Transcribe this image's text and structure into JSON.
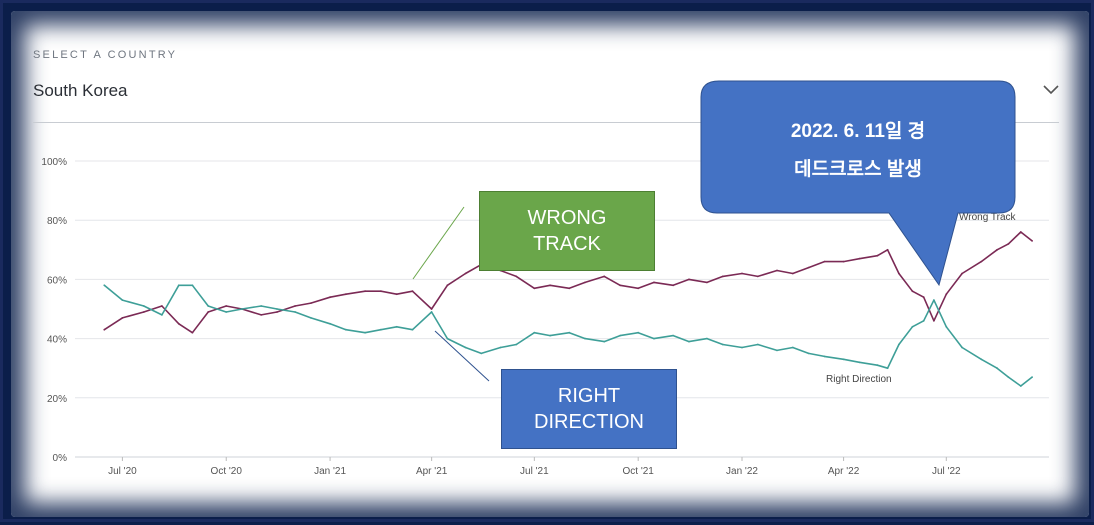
{
  "selector": {
    "label": "SELECT A COUNTRY",
    "value": "South Korea",
    "icon": "chevron-down-icon"
  },
  "annotations": {
    "wrong_box": [
      "WRONG",
      "TRACK"
    ],
    "right_box": [
      "RIGHT",
      "DIRECTION"
    ],
    "callout": [
      "2022. 6. 11일 경",
      "데드크로스 발생"
    ]
  },
  "colors": {
    "wrong_track": "#7b2a55",
    "right_direction": "#3e9f98",
    "wrong_box": "#6aa64a",
    "right_box": "#4472c4",
    "callout": "#4472c4",
    "frame": "#0b1e4a"
  },
  "chart_data": {
    "type": "line",
    "x_type": "date",
    "xlim": [
      "2020-05-20",
      "2022-09-30"
    ],
    "ylim": [
      0,
      100
    ],
    "y_ticks": [
      0,
      20,
      40,
      60,
      80,
      100
    ],
    "y_tick_labels": [
      "0%",
      "20%",
      "40%",
      "60%",
      "80%",
      "100%"
    ],
    "x_ticks": [
      "2020-07-01",
      "2020-10-01",
      "2021-01-01",
      "2021-04-01",
      "2021-07-01",
      "2021-10-01",
      "2022-01-01",
      "2022-04-01",
      "2022-07-01"
    ],
    "x_tick_labels": [
      "Jul '20",
      "Oct '20",
      "Jan '21",
      "Apr '21",
      "Jul '21",
      "Oct '21",
      "Jan '22",
      "Apr '22",
      "Jul '22"
    ],
    "grid": "horizontal",
    "series": [
      {
        "name": "Wrong Track",
        "x": [
          "2020-06-15",
          "2020-07-01",
          "2020-07-20",
          "2020-08-05",
          "2020-08-20",
          "2020-09-01",
          "2020-09-15",
          "2020-10-01",
          "2020-10-15",
          "2020-11-01",
          "2020-11-15",
          "2020-12-01",
          "2020-12-15",
          "2021-01-01",
          "2021-01-15",
          "2021-02-01",
          "2021-02-15",
          "2021-03-01",
          "2021-03-15",
          "2021-04-01",
          "2021-04-15",
          "2021-05-01",
          "2021-05-15",
          "2021-06-01",
          "2021-06-15",
          "2021-07-01",
          "2021-07-15",
          "2021-08-01",
          "2021-08-15",
          "2021-09-01",
          "2021-09-15",
          "2021-10-01",
          "2021-10-15",
          "2021-11-01",
          "2021-11-15",
          "2021-12-01",
          "2021-12-15",
          "2022-01-01",
          "2022-01-15",
          "2022-02-01",
          "2022-02-15",
          "2022-03-01",
          "2022-03-15",
          "2022-04-01",
          "2022-04-15",
          "2022-05-01",
          "2022-05-10",
          "2022-05-20",
          "2022-06-01",
          "2022-06-11",
          "2022-06-20",
          "2022-07-01",
          "2022-07-15",
          "2022-08-01",
          "2022-08-15",
          "2022-08-25",
          "2022-09-05",
          "2022-09-15"
        ],
        "values": [
          43,
          47,
          49,
          51,
          45,
          42,
          49,
          51,
          50,
          48,
          49,
          51,
          52,
          54,
          55,
          56,
          56,
          55,
          56,
          50,
          58,
          62,
          65,
          63,
          61,
          57,
          58,
          57,
          59,
          61,
          58,
          57,
          59,
          58,
          60,
          59,
          61,
          62,
          61,
          63,
          62,
          64,
          66,
          66,
          67,
          68,
          70,
          62,
          56,
          54,
          46,
          55,
          62,
          66,
          70,
          72,
          76,
          73
        ]
      },
      {
        "name": "Right Direction",
        "x": [
          "2020-06-15",
          "2020-07-01",
          "2020-07-20",
          "2020-08-05",
          "2020-08-20",
          "2020-09-01",
          "2020-09-15",
          "2020-10-01",
          "2020-10-15",
          "2020-11-01",
          "2020-11-15",
          "2020-12-01",
          "2020-12-15",
          "2021-01-01",
          "2021-01-15",
          "2021-02-01",
          "2021-02-15",
          "2021-03-01",
          "2021-03-15",
          "2021-04-01",
          "2021-04-15",
          "2021-05-01",
          "2021-05-15",
          "2021-06-01",
          "2021-06-15",
          "2021-07-01",
          "2021-07-15",
          "2021-08-01",
          "2021-08-15",
          "2021-09-01",
          "2021-09-15",
          "2021-10-01",
          "2021-10-15",
          "2021-11-01",
          "2021-11-15",
          "2021-12-01",
          "2021-12-15",
          "2022-01-01",
          "2022-01-15",
          "2022-02-01",
          "2022-02-15",
          "2022-03-01",
          "2022-03-15",
          "2022-04-01",
          "2022-04-15",
          "2022-05-01",
          "2022-05-10",
          "2022-05-20",
          "2022-06-01",
          "2022-06-11",
          "2022-06-20",
          "2022-07-01",
          "2022-07-15",
          "2022-08-01",
          "2022-08-15",
          "2022-08-25",
          "2022-09-05",
          "2022-09-15"
        ],
        "values": [
          58,
          53,
          51,
          48,
          58,
          58,
          51,
          49,
          50,
          51,
          50,
          49,
          47,
          45,
          43,
          42,
          43,
          44,
          43,
          49,
          40,
          37,
          35,
          37,
          38,
          42,
          41,
          42,
          40,
          39,
          41,
          42,
          40,
          41,
          39,
          40,
          38,
          37,
          38,
          36,
          37,
          35,
          34,
          33,
          32,
          31,
          30,
          38,
          44,
          46,
          53,
          44,
          37,
          33,
          30,
          27,
          24,
          27
        ]
      }
    ],
    "series_labels": [
      "Wrong Track",
      "Right Direction"
    ]
  }
}
